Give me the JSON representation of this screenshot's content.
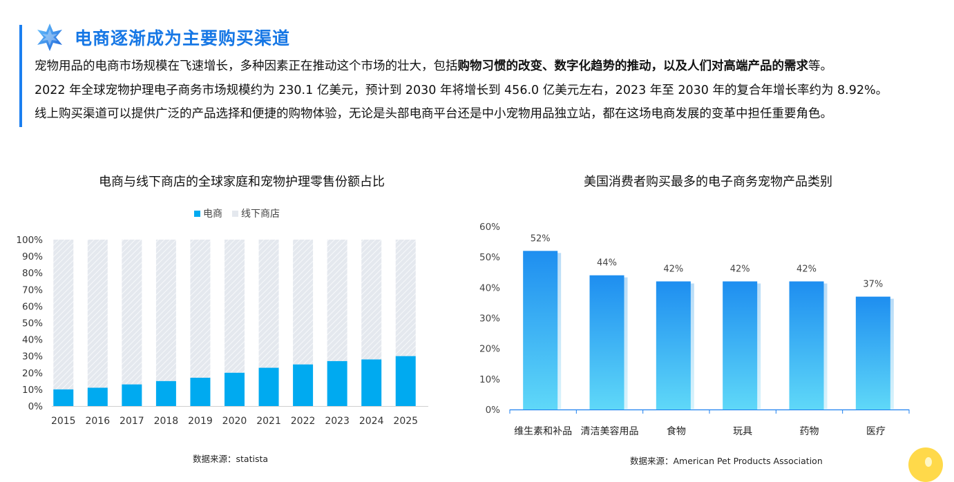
{
  "header": {
    "title": "电商逐渐成为主要购买渠道",
    "accent_color": "#1b7ff0",
    "icon": "star-icon"
  },
  "paragraphs": {
    "line1_pre": "宠物用品的电商市场规模在飞速增长，多种因素正在推动这个市场的壮大，包括",
    "line1_bold": "购物习惯的改变、数字化趋势的推动，以及人们对高端产品的需求",
    "line1_post": "等。",
    "line2": "2022 年全球宠物护理电子商务市场规模约为 230.1 亿美元，预计到 2030 年将增长到 456.0 亿美元左右，2023 年至 2030 年的复合年增长率约为 8.92%。",
    "line3": "线上购买渠道可以提供广泛的产品选择和便捷的购物体验，无论是头部电商平台还是中小宠物用品独立站，都在这场电商发展的变革中担任重要角色。"
  },
  "chart_data": [
    {
      "type": "bar",
      "stacked": true,
      "title": "电商与线下商店的全球家庭和宠物护理零售份额占比",
      "categories": [
        "2015",
        "2016",
        "2017",
        "2018",
        "2019",
        "2020",
        "2021",
        "2022",
        "2023",
        "2024",
        "2025"
      ],
      "series": [
        {
          "name": "电商",
          "color": "#00aaf0",
          "values": [
            10,
            11,
            13,
            15,
            17,
            20,
            23,
            25,
            27,
            28,
            30
          ]
        },
        {
          "name": "线下商店",
          "color": "#e4e8ee",
          "values": [
            90,
            89,
            87,
            85,
            83,
            80,
            77,
            75,
            73,
            72,
            70
          ]
        }
      ],
      "yticks": [
        "100%",
        "90%",
        "80%",
        "70%",
        "60%",
        "50%",
        "40%",
        "30%",
        "20%",
        "10%",
        "0%"
      ],
      "ylim": [
        0,
        100
      ],
      "legend_position": "top-center",
      "source": "数据来源：statista"
    },
    {
      "type": "bar",
      "title": "美国消费者购买最多的电子商务宠物产品类别",
      "categories": [
        "维生素和补品",
        "清洁美容用品",
        "食物",
        "玩具",
        "药物",
        "医疗"
      ],
      "values": [
        52,
        44,
        42,
        42,
        42,
        37
      ],
      "data_labels": [
        "52%",
        "44%",
        "42%",
        "42%",
        "42%",
        "37%"
      ],
      "yticks": [
        "60%",
        "50%",
        "40%",
        "30%",
        "20%",
        "10%",
        "0%"
      ],
      "ylim": [
        0,
        60
      ],
      "bar_gradient": [
        "#1e8ef0",
        "#5fd8f8"
      ],
      "source": "数据来源：American Pet Products Association"
    }
  ]
}
